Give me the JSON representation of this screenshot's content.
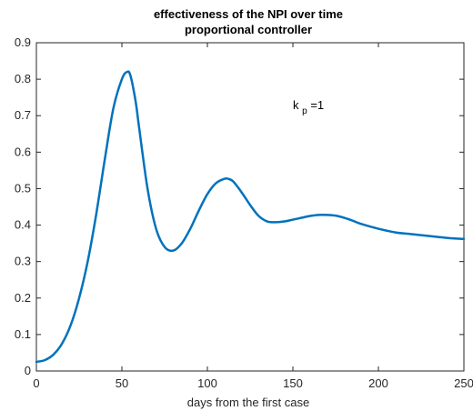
{
  "chart_data": {
    "type": "line",
    "title": [
      "effectiveness of the NPI over time",
      "proportional controller"
    ],
    "xlabel": "days from the first case",
    "ylabel": "",
    "xlim": [
      0,
      250
    ],
    "ylim": [
      0,
      0.9
    ],
    "xticks": [
      0,
      50,
      100,
      150,
      200,
      250
    ],
    "yticks": [
      0,
      0.1,
      0.2,
      0.3,
      0.4,
      0.5,
      0.6,
      0.7,
      0.8,
      0.9
    ],
    "grid": false,
    "series": [
      {
        "color": "#0072BD",
        "x": [
          0,
          5,
          10,
          15,
          20,
          25,
          30,
          35,
          40,
          45,
          50,
          53,
          55,
          58,
          60,
          65,
          70,
          75,
          80,
          85,
          90,
          95,
          100,
          105,
          110,
          112,
          115,
          120,
          125,
          130,
          135,
          140,
          145,
          150,
          155,
          160,
          165,
          170,
          175,
          180,
          185,
          190,
          200,
          210,
          220,
          230,
          240,
          250
        ],
        "y": [
          0.025,
          0.03,
          0.045,
          0.075,
          0.125,
          0.2,
          0.3,
          0.43,
          0.58,
          0.72,
          0.8,
          0.82,
          0.81,
          0.74,
          0.67,
          0.5,
          0.39,
          0.34,
          0.33,
          0.35,
          0.39,
          0.44,
          0.485,
          0.515,
          0.527,
          0.527,
          0.52,
          0.49,
          0.455,
          0.425,
          0.41,
          0.408,
          0.41,
          0.415,
          0.42,
          0.425,
          0.428,
          0.428,
          0.426,
          0.42,
          0.412,
          0.403,
          0.39,
          0.38,
          0.375,
          0.37,
          0.365,
          0.362
        ]
      }
    ],
    "annotation": {
      "base": "k",
      "subscript": "p",
      "suffix": "=1"
    }
  }
}
